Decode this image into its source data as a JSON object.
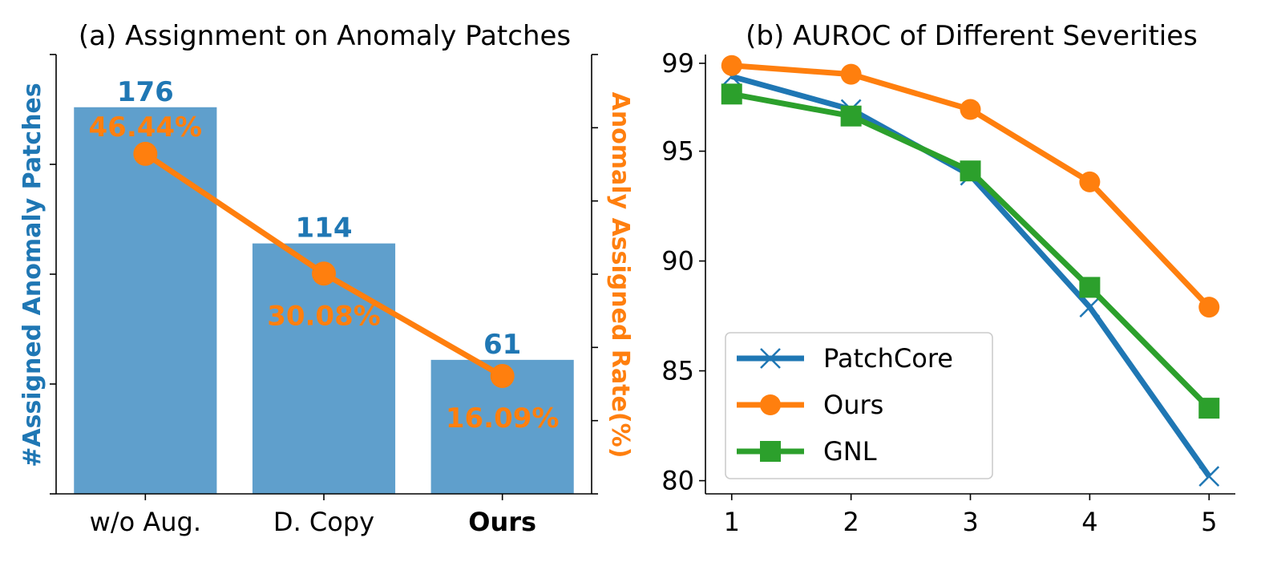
{
  "chart_data": [
    {
      "type": "bar",
      "title": "(a) Assignment on Anomaly Patches",
      "categories": [
        "w/o Aug.",
        "D. Copy",
        "Ours"
      ],
      "bold_category": "Ours",
      "ylabel_left": "#Assigned Anomaly Patches",
      "ylabel_right": "Anomaly Assigned Rate(%)",
      "bar_color": "#5f9fcc",
      "bar_label_color": "#1f77b4",
      "line_color": "#ff7f0e",
      "bars": {
        "values": [
          176,
          114,
          61
        ],
        "labels": [
          "176",
          "114",
          "61"
        ]
      },
      "line": {
        "values": [
          46.44,
          30.08,
          16.09
        ],
        "labels": [
          "46.44%",
          "30.08%",
          "16.09%"
        ]
      },
      "ylim_left": [
        0,
        200
      ],
      "ylim_right": [
        0,
        60
      ]
    },
    {
      "type": "line",
      "title": "(b) AUROC of Different Severities",
      "x": [
        1,
        2,
        3,
        4,
        5
      ],
      "yticks": [
        80,
        85,
        90,
        95,
        99
      ],
      "ylim": [
        79.4,
        99.4
      ],
      "legend_position": "lower-left",
      "series": [
        {
          "name": "PatchCore",
          "values": [
            98.4,
            96.9,
            93.9,
            87.9,
            80.2
          ],
          "color": "#1f77b4",
          "marker": "x"
        },
        {
          "name": "Ours",
          "values": [
            98.9,
            98.5,
            96.9,
            93.6,
            87.9
          ],
          "color": "#ff7f0e",
          "marker": "circle"
        },
        {
          "name": "GNL",
          "values": [
            97.6,
            96.6,
            94.1,
            88.8,
            83.3
          ],
          "color": "#2ca02c",
          "marker": "square"
        }
      ]
    }
  ]
}
